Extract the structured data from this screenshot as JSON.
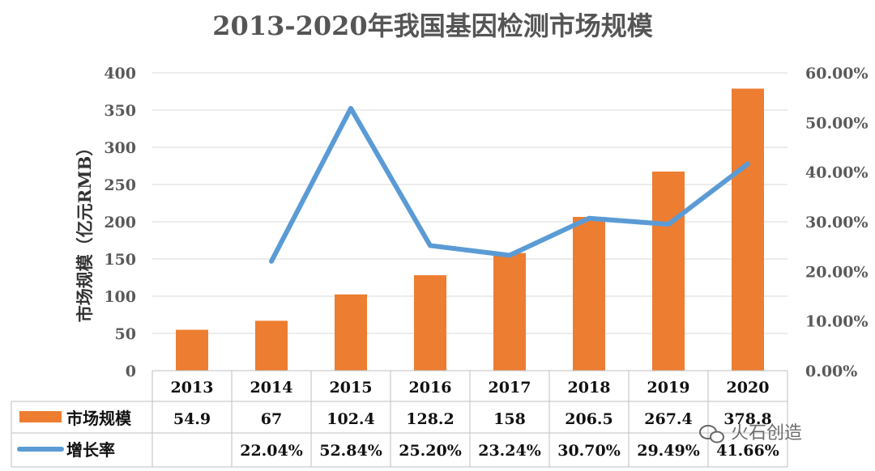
{
  "chart_data": {
    "type": "bar",
    "title": "2013-2020年我国基因检测市场规模",
    "ylabel": "市场规模（亿元RMB）",
    "categories": [
      "2013",
      "2014",
      "2015",
      "2016",
      "2017",
      "2018",
      "2019",
      "2020"
    ],
    "ylim": [
      0,
      400
    ],
    "y_ticks": [
      "0",
      "50",
      "100",
      "150",
      "200",
      "250",
      "300",
      "350",
      "400"
    ],
    "y2lim": [
      0,
      0.6
    ],
    "y2_ticks": [
      "0.00%",
      "10.00%",
      "20.00%",
      "30.00%",
      "40.00%",
      "50.00%",
      "60.00%"
    ],
    "grid": true,
    "series": [
      {
        "name": "市场规模",
        "type": "bar",
        "axis": "left",
        "color": "#ED7D31",
        "values": [
          54.9,
          67,
          102.4,
          128.2,
          158,
          206.5,
          267.4,
          378.8
        ],
        "labels": [
          "54.9",
          "67",
          "102.4",
          "128.2",
          "158",
          "206.5",
          "267.4",
          "378.8"
        ]
      },
      {
        "name": "增长率",
        "type": "line",
        "axis": "right",
        "color": "#5B9BD5",
        "values": [
          null,
          0.2204,
          0.5284,
          0.252,
          0.2324,
          0.307,
          0.2949,
          0.4166
        ],
        "labels": [
          "",
          "22.04%",
          "52.84%",
          "25.20%",
          "23.24%",
          "30.70%",
          "29.49%",
          "41.66%"
        ]
      }
    ],
    "legend_placement": "data-table-left"
  },
  "watermark": "火石创造"
}
